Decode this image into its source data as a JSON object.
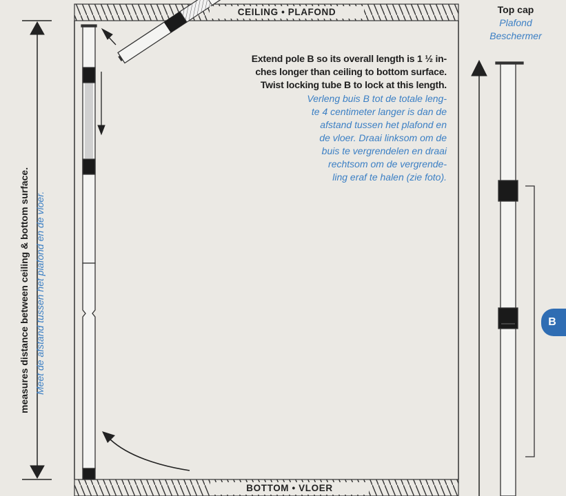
{
  "ceiling_label": "CEILING • PLAFOND",
  "bottom_label": "BOTTOM • VLOER",
  "measure": {
    "en": "measures distance between ceiling & bottom surface.",
    "nl": "Meet de afstand tussen het plafond en de vloer."
  },
  "instructions": {
    "en": [
      "Extend pole B so its overall length is 1 ½ in-",
      "ches longer than ceiling to bottom surface.",
      "Twist locking tube B to lock at this length."
    ],
    "nl": [
      "Verleng buis B tot de totale leng-",
      "te 4 centimeter langer is dan de",
      "afstand tussen het plafond en",
      "de vloer. Draai linksom om de",
      "buis te vergrendelen en draai",
      "rechtsom om de vergrende-",
      "ling eraf te halen (zie foto)."
    ]
  },
  "top_cap": {
    "en": "Top cap",
    "nl": [
      "Plafond",
      "Beschermer"
    ]
  },
  "pole_badge": "B",
  "colors": {
    "accent": "#3b7fc4",
    "badge": "#2f6db3"
  }
}
